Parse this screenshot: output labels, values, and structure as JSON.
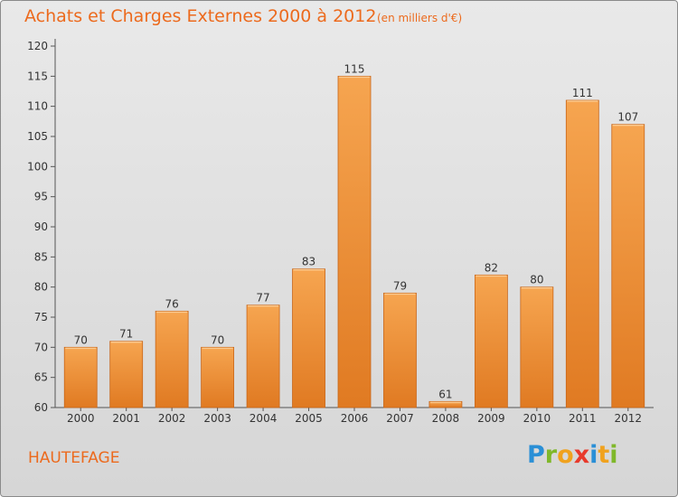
{
  "header": {
    "title": "Achats et Charges Externes 2000 à 2012",
    "subtitle": "(en milliers d'€)"
  },
  "place_name": "HAUTEFAGE",
  "logo": {
    "text": "Proxiti",
    "letter_colors": [
      "#2a8fd6",
      "#7fb82a",
      "#f0a21e",
      "#e83a2c",
      "#2a8fd6",
      "#f0a21e",
      "#7fb82a"
    ]
  },
  "chart_data": {
    "type": "bar",
    "categories": [
      "2000",
      "2001",
      "2002",
      "2003",
      "2004",
      "2005",
      "2006",
      "2007",
      "2008",
      "2009",
      "2010",
      "2011",
      "2012"
    ],
    "values": [
      70,
      71,
      76,
      70,
      77,
      83,
      115,
      79,
      61,
      82,
      80,
      111,
      107
    ],
    "data_labels": [
      "70",
      "71",
      "76",
      "70",
      "77",
      "83",
      "115",
      "79",
      "61",
      "82",
      "80",
      "111",
      "107"
    ],
    "ylim": [
      60,
      120
    ],
    "yticks": [
      60,
      65,
      70,
      75,
      80,
      85,
      90,
      95,
      100,
      105,
      110,
      115,
      120
    ],
    "grid": false,
    "bar_color_top": "#f6a550",
    "bar_color_bottom": "#e07a22"
  }
}
